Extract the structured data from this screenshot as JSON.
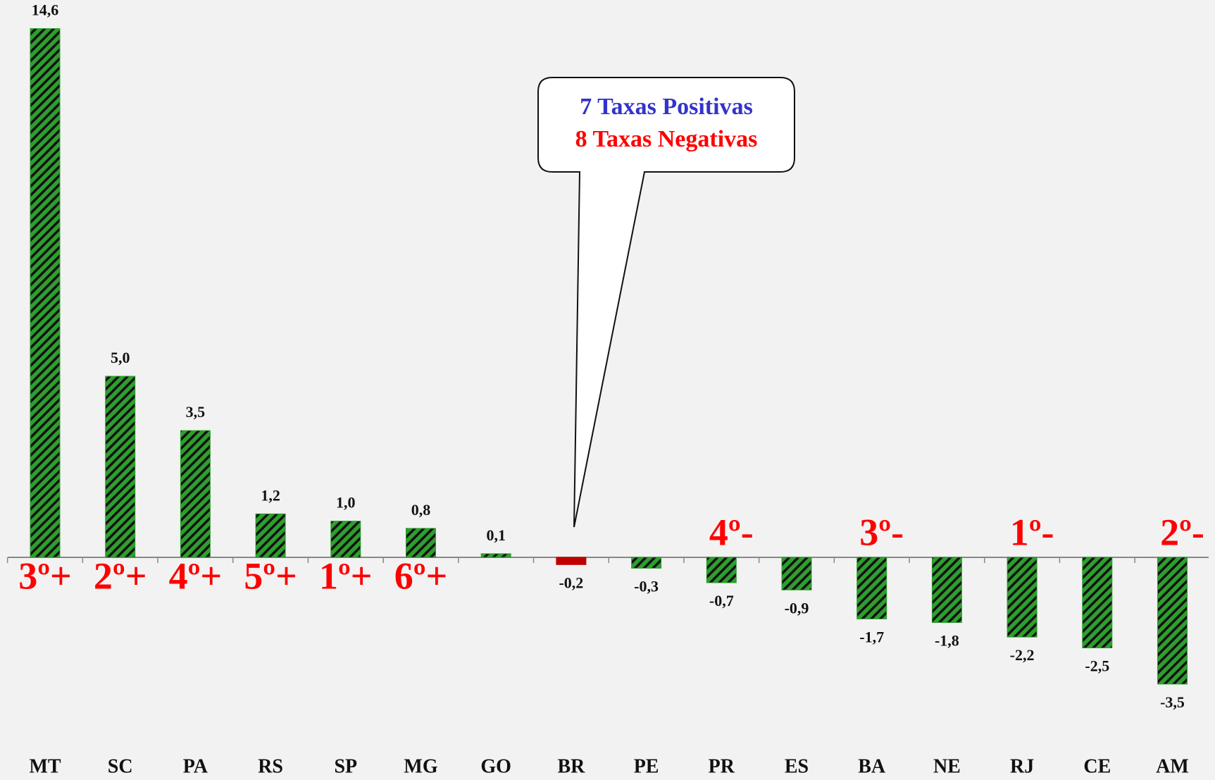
{
  "chart_data": {
    "type": "bar",
    "categories": [
      "MT",
      "SC",
      "PA",
      "RS",
      "SP",
      "MG",
      "GO",
      "BR",
      "PE",
      "PR",
      "ES",
      "BA",
      "NE",
      "RJ",
      "CE",
      "AM"
    ],
    "values": [
      14.6,
      5.0,
      3.5,
      1.2,
      1.0,
      0.8,
      0.1,
      -0.2,
      -0.3,
      -0.7,
      -0.9,
      -1.7,
      -1.8,
      -2.2,
      -2.5,
      -3.5
    ],
    "value_labels": [
      "14,6",
      "5,0",
      "3,5",
      "1,2",
      "1,0",
      "0,8",
      "0,1",
      "-0,2",
      "-0,3",
      "-0,7",
      "-0,9",
      "-1,7",
      "-1,8",
      "-2,2",
      "-2,5",
      "-3,5"
    ],
    "colors": [
      "#2e9e2e",
      "#2e9e2e",
      "#2e9e2e",
      "#2e9e2e",
      "#2e9e2e",
      "#2e9e2e",
      "#2e9e2e",
      "#c00000",
      "#2e9e2e",
      "#2e9e2e",
      "#2e9e2e",
      "#2e9e2e",
      "#2e9e2e",
      "#2e9e2e",
      "#2e9e2e",
      "#2e9e2e"
    ],
    "hatched": [
      true,
      true,
      true,
      true,
      true,
      true,
      true,
      false,
      true,
      true,
      true,
      true,
      true,
      true,
      true,
      true
    ],
    "rank_labels": [
      "3º+",
      "2º+",
      "4º+",
      "5º+",
      "1º+",
      "6º+",
      null,
      null,
      null,
      "4º-",
      null,
      "3º-",
      null,
      "1º-",
      null,
      "2º-"
    ],
    "ylim": [
      -5,
      15
    ],
    "callout": {
      "lines": [
        {
          "text": "7 Taxas Positivas",
          "color": "#3333cc"
        },
        {
          "text": "8 Taxas Negativas",
          "color": "#ff0000"
        }
      ],
      "target": "BR"
    }
  }
}
